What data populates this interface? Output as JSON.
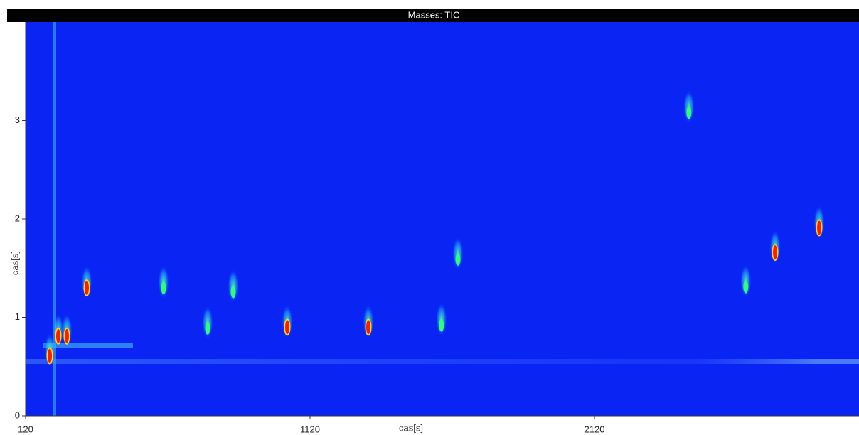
{
  "chart_data": {
    "type": "heatmap",
    "title": "Masses: TIC",
    "x_label": "cas[s]",
    "y_label": "cas[s]",
    "xlim": [
      120,
      3050
    ],
    "ylim": [
      0,
      4
    ],
    "xticks": [
      120,
      1120,
      2120
    ],
    "yticks": [
      0,
      1,
      2,
      3
    ],
    "background": "#0a24f4",
    "series": [
      {
        "color": "#ff1a00",
        "x": [
          335,
          1040,
          1325,
          2755,
          2910,
          235,
          265,
          205
        ],
        "y": [
          1.3,
          0.9,
          0.9,
          1.66,
          1.91,
          0.81,
          0.81,
          0.61
        ]
      },
      {
        "color": "#30ff70",
        "x": [
          605,
          760,
          1582,
          2452,
          2652,
          850,
          1640
        ],
        "y": [
          1.3,
          0.89,
          0.92,
          3.08,
          1.31,
          1.26,
          1.59
        ]
      }
    ]
  }
}
